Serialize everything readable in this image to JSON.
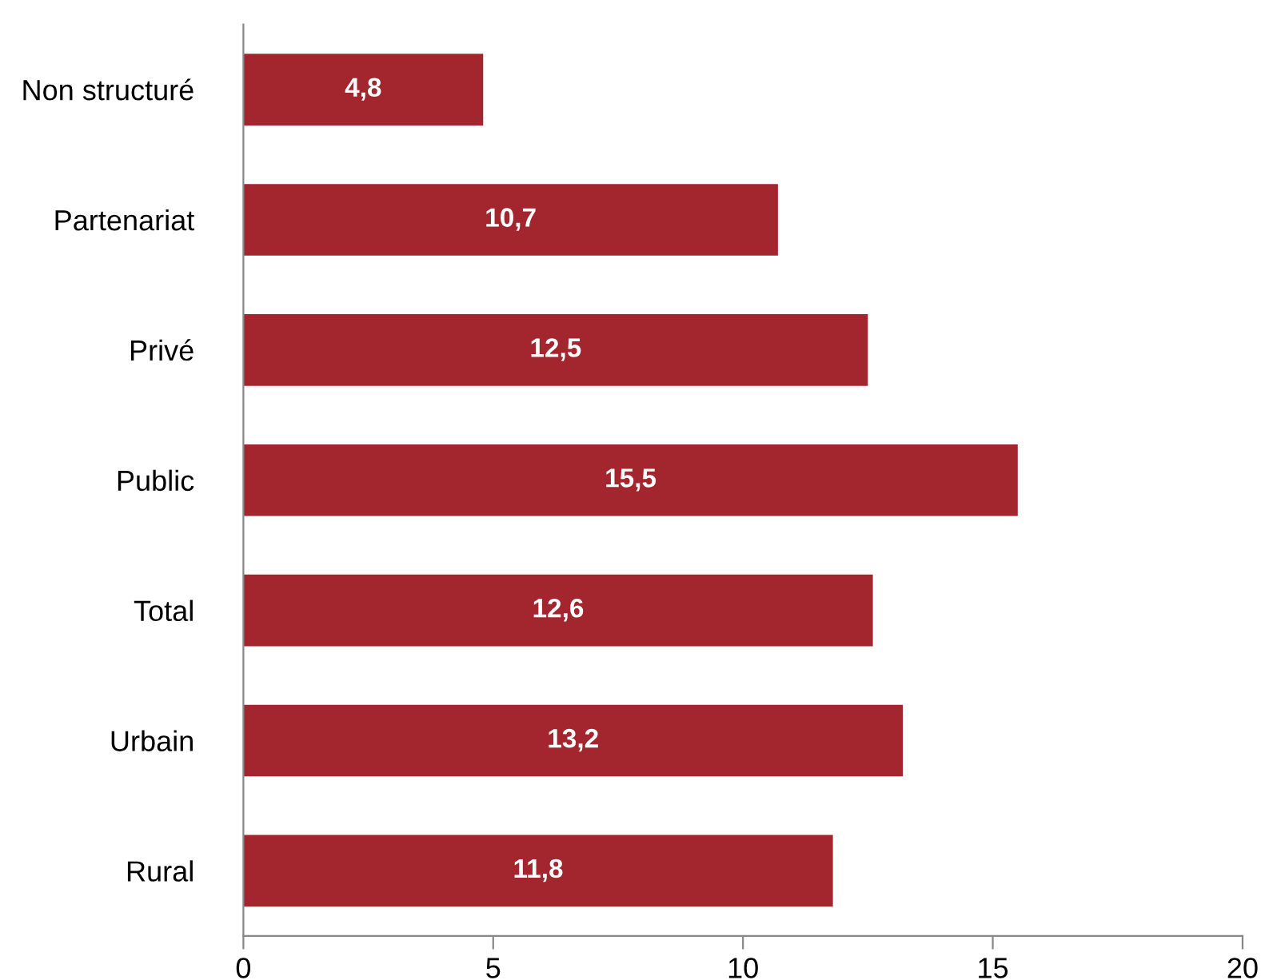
{
  "chart_data": {
    "type": "bar",
    "orientation": "horizontal",
    "categories": [
      "Non structuré",
      "Partenariat",
      "Privé",
      "Public",
      "Total",
      "Urbain",
      "Rural"
    ],
    "values": [
      4.8,
      10.7,
      12.5,
      15.5,
      12.6,
      13.2,
      11.8
    ],
    "value_labels": [
      "4,8",
      "10,7",
      "12,5",
      "15,5",
      "12,6",
      "13,2",
      "11,8"
    ],
    "color": "#a3262e",
    "xlim": [
      0,
      20
    ],
    "xticks": [
      0,
      5,
      10,
      15,
      20
    ],
    "grid": false,
    "legend": false
  }
}
